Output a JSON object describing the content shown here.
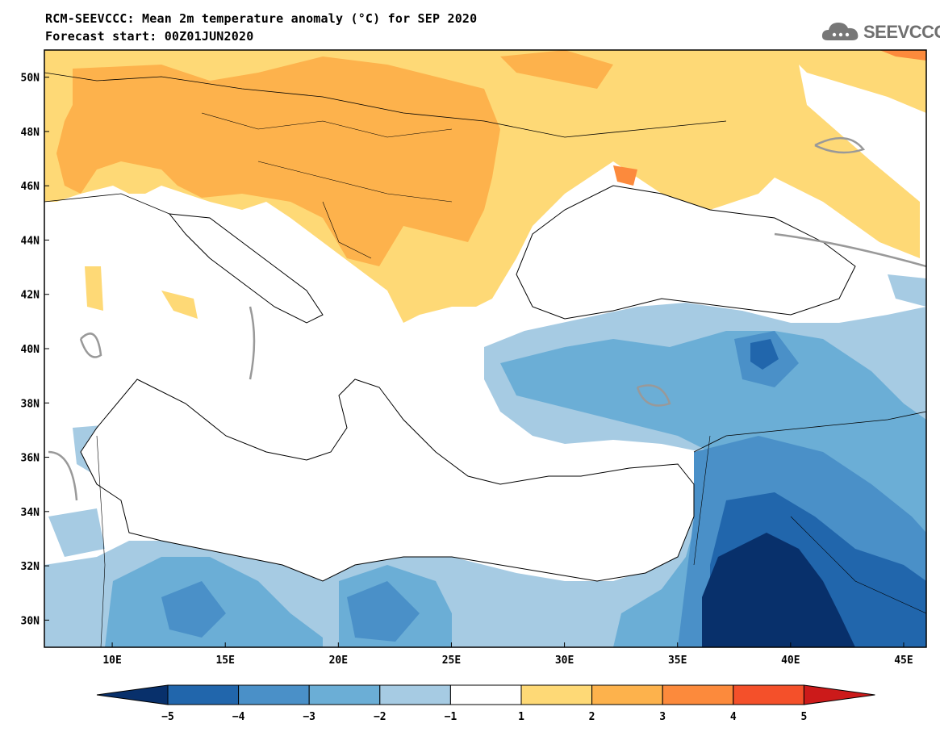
{
  "title": {
    "line1": "RCM-SEEVCCC: Mean 2m temperature anomaly (°C) for SEP 2020",
    "line2": "Forecast start: 00Z01JUN2020"
  },
  "logo": {
    "text": "SEEVCCC",
    "icon": "cloud-icon",
    "color": "#6f6f6f"
  },
  "map": {
    "lon_range": [
      7,
      46
    ],
    "lat_range": [
      29,
      51
    ],
    "lon_ticks": [
      {
        "value": 10,
        "label": "10E"
      },
      {
        "value": 15,
        "label": "15E"
      },
      {
        "value": 20,
        "label": "20E"
      },
      {
        "value": 25,
        "label": "25E"
      },
      {
        "value": 30,
        "label": "30E"
      },
      {
        "value": 35,
        "label": "35E"
      },
      {
        "value": 40,
        "label": "40E"
      },
      {
        "value": 45,
        "label": "45E"
      }
    ],
    "lat_ticks": [
      {
        "value": 30,
        "label": "30N"
      },
      {
        "value": 32,
        "label": "32N"
      },
      {
        "value": 34,
        "label": "34N"
      },
      {
        "value": 36,
        "label": "36N"
      },
      {
        "value": 38,
        "label": "38N"
      },
      {
        "value": 40,
        "label": "40N"
      },
      {
        "value": 42,
        "label": "42N"
      },
      {
        "value": 44,
        "label": "44N"
      },
      {
        "value": 46,
        "label": "46N"
      },
      {
        "value": 48,
        "label": "48N"
      },
      {
        "value": 50,
        "label": "50N"
      }
    ]
  },
  "colorbar": {
    "levels": [
      "−5",
      "−4",
      "−3",
      "−2",
      "−1",
      "1",
      "2",
      "3",
      "4",
      "5"
    ],
    "colors": [
      "#08306b",
      "#2166ac",
      "#4a90c8",
      "#6baed6",
      "#a6cbe3",
      "#ffffff",
      "#fed976",
      "#fdb24c",
      "#fc8a3c",
      "#f4502a",
      "#cc1a1a"
    ]
  }
}
